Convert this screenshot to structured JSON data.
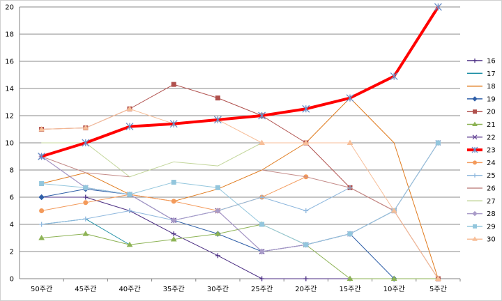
{
  "chart_data": {
    "type": "line",
    "categories": [
      "50주간",
      "45주간",
      "40주간",
      "35주간",
      "30주간",
      "25주간",
      "20주간",
      "15주간",
      "10주간",
      "5주간"
    ],
    "ylim": [
      0,
      20
    ],
    "yticks": [
      "0",
      "2",
      "4",
      "6",
      "8",
      "10",
      "12",
      "14",
      "16",
      "18",
      "20"
    ],
    "grid": "horizontal",
    "legend_position": "right",
    "series": [
      {
        "name": "16",
        "color": "#4B2E83",
        "marker": "plus",
        "width": 1,
        "values": [
          6,
          6,
          5,
          3.3,
          1.7,
          0,
          0,
          0,
          null,
          null
        ]
      },
      {
        "name": "17",
        "color": "#1F8FA5",
        "marker": "none",
        "width": 1,
        "values": [
          4,
          4.4,
          2.5,
          null,
          null,
          null,
          null,
          null,
          null,
          null
        ]
      },
      {
        "name": "18",
        "color": "#E07B1E",
        "marker": "none",
        "width": 1,
        "values": [
          7,
          7.8,
          6.2,
          5.7,
          6.6,
          8,
          10,
          13.3,
          10,
          0
        ]
      },
      {
        "name": "19",
        "color": "#2F5FA8",
        "marker": "diamond",
        "width": 1,
        "values": [
          6,
          6.6,
          6.2,
          4.3,
          3.3,
          2,
          2.5,
          3.3,
          0,
          null
        ]
      },
      {
        "name": "20",
        "color": "#B0504D",
        "marker": "square",
        "width": 1,
        "values": [
          11,
          11.1,
          12.5,
          14.3,
          13.3,
          12,
          10,
          6.7,
          5,
          0
        ]
      },
      {
        "name": "21",
        "color": "#8DB355",
        "marker": "triangle",
        "width": 1,
        "values": [
          3,
          3.3,
          2.5,
          2.9,
          3.3,
          4,
          2.5,
          0,
          0,
          0
        ]
      },
      {
        "name": "22",
        "color": "#6B4C9A",
        "marker": "x",
        "width": 1,
        "values": [
          9,
          6.7,
          6.2,
          4.3,
          5,
          2,
          2.5,
          3.3,
          5,
          10
        ]
      },
      {
        "name": "23",
        "color": "#FF0000",
        "marker": "star",
        "width": 4,
        "values": [
          9,
          10,
          11.2,
          11.4,
          11.7,
          12,
          12.5,
          13.3,
          14.9,
          20
        ]
      },
      {
        "name": "24",
        "color": "#F39A5B",
        "marker": "circle",
        "width": 1,
        "values": [
          5,
          5.6,
          6.2,
          5.7,
          5,
          6,
          7.5,
          null,
          null,
          null
        ]
      },
      {
        "name": "25",
        "color": "#8FB8DE",
        "marker": "plus",
        "width": 1,
        "values": [
          4,
          4.4,
          5,
          4.3,
          5,
          6,
          5,
          6.7,
          null,
          null
        ]
      },
      {
        "name": "26",
        "color": "#C48B88",
        "marker": "none",
        "width": 1,
        "values": [
          9,
          7.8,
          7.5,
          null,
          null,
          8,
          7.5,
          6.7,
          5,
          0
        ]
      },
      {
        "name": "27",
        "color": "#C3D69B",
        "marker": "none",
        "width": 1,
        "values": [
          10,
          10,
          7.5,
          8.6,
          8.3,
          10,
          null,
          null,
          null,
          null
        ]
      },
      {
        "name": "28",
        "color": "#A99BC8",
        "marker": "diamond",
        "width": 1,
        "values": [
          9,
          6.7,
          6.2,
          4.3,
          5,
          2,
          2.5,
          3.3,
          5,
          10
        ]
      },
      {
        "name": "29",
        "color": "#93C6DD",
        "marker": "square",
        "width": 1,
        "values": [
          7,
          6.7,
          6.2,
          7.1,
          6.7,
          4,
          2.5,
          3.3,
          5,
          10
        ]
      },
      {
        "name": "30",
        "color": "#F7BE98",
        "marker": "triangle",
        "width": 1,
        "values": [
          11,
          11.1,
          12.5,
          11.4,
          11.7,
          10,
          10,
          10,
          5,
          0
        ]
      }
    ]
  }
}
